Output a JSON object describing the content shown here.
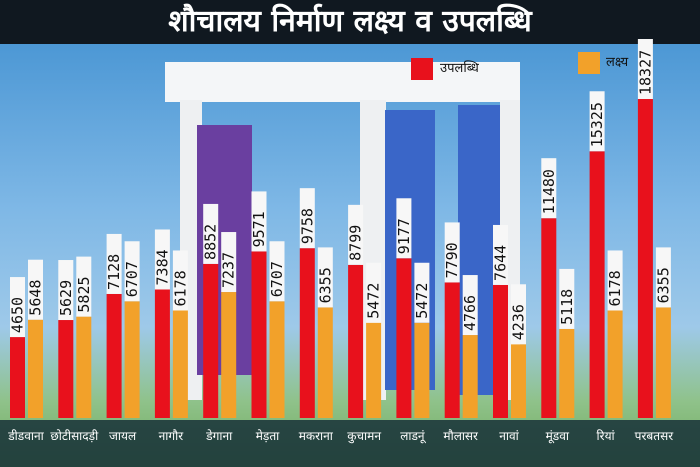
{
  "chart_data": {
    "type": "bar",
    "title": "शौचालय निर्माण लक्ष्य व उपलब्धि",
    "xlabel": "",
    "ylabel": "",
    "categories": [
      "डीडवाना",
      "छोटीसादड़ी",
      "जायल",
      "नागौर",
      "डेगाना",
      "मेड़ता",
      "मकराना",
      "कुचामन",
      "लाडनूं",
      "मौलासर",
      "नावां",
      "मूंडवा",
      "रियां",
      "परबतसर"
    ],
    "series": [
      {
        "name": "उपलब्धि",
        "values": [
          4650,
          5629,
          7128,
          7384,
          8852,
          9571,
          9758,
          8799,
          9177,
          7790,
          7644,
          11480,
          15325,
          18327
        ]
      },
      {
        "name": "लक्ष्य",
        "values": [
          5648,
          5825,
          6707,
          6178,
          7237,
          6707,
          6355,
          5472,
          5472,
          4766,
          4236,
          5118,
          6178,
          6355
        ]
      }
    ],
    "ylim": [
      0,
      18500
    ],
    "grid": false,
    "legend_position": "top-right",
    "colors": {
      "achievement": "#e8111c",
      "target": "#f2a12a",
      "background_sky": "#6fb0e3",
      "title_bg": "#101820"
    }
  }
}
